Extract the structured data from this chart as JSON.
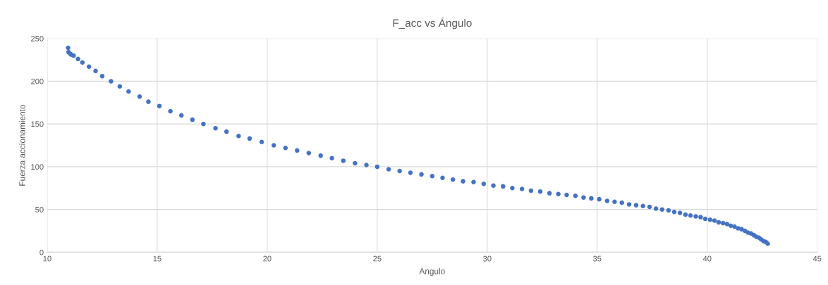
{
  "chart_data": {
    "type": "scatter",
    "title": "F_acc vs Ángulo",
    "xlabel": "Ángulo",
    "ylabel": "Fuerza accionamiento",
    "xlim": [
      10,
      45
    ],
    "xticks": [
      10,
      15,
      20,
      25,
      30,
      35,
      40,
      45
    ],
    "ylim": [
      0,
      250
    ],
    "yticks": [
      0,
      50,
      100,
      150,
      200,
      250
    ],
    "grid": true,
    "marker": "circle",
    "series": [
      {
        "color": "#4472c4",
        "x": [
          10.95,
          10.97,
          11.05,
          11.1,
          11.2,
          11.4,
          11.6,
          11.9,
          12.2,
          12.5,
          12.9,
          13.3,
          13.7,
          14.2,
          14.6,
          15.1,
          15.6,
          16.1,
          16.6,
          17.1,
          17.65,
          18.15,
          18.7,
          19.2,
          19.75,
          20.3,
          20.83,
          21.36,
          21.89,
          22.43,
          22.94,
          23.46,
          23.99,
          24.51,
          25.0,
          25.52,
          26.02,
          26.51,
          27.01,
          27.5,
          27.97,
          28.44,
          28.9,
          29.38,
          29.84,
          30.28,
          30.72,
          31.14,
          31.58,
          31.99,
          32.41,
          32.83,
          33.23,
          33.61,
          34.01,
          34.38,
          34.73,
          35.09,
          35.45,
          35.79,
          36.12,
          36.45,
          36.77,
          37.08,
          37.38,
          37.67,
          37.95,
          38.24,
          38.5,
          38.76,
          39.01,
          39.24,
          39.48,
          39.7,
          39.91,
          40.13,
          40.33,
          40.52,
          40.72,
          40.9,
          41.07,
          41.24,
          41.4,
          41.56,
          41.71,
          41.85,
          41.99,
          42.12,
          42.23,
          42.35,
          42.45,
          42.56,
          42.66,
          42.75
        ],
        "values": [
          239,
          234,
          232,
          231,
          230,
          226,
          222,
          217,
          212,
          206,
          200,
          194,
          188,
          182,
          176,
          171,
          165,
          160,
          155,
          150,
          145,
          141,
          136,
          133,
          129,
          125,
          122,
          119,
          116,
          113,
          110,
          107,
          104,
          102,
          100,
          97,
          95,
          93,
          91,
          89,
          87,
          85,
          83,
          82,
          80,
          78,
          77,
          75,
          74,
          72,
          71,
          69,
          68,
          67,
          66,
          64,
          63,
          62,
          60,
          59,
          58,
          56,
          55,
          54,
          53,
          51,
          50,
          49,
          47,
          46,
          44,
          43,
          42,
          41,
          39,
          38,
          37,
          35,
          34,
          33,
          31,
          30,
          28,
          27,
          25,
          23,
          22,
          20,
          18,
          17,
          15,
          13,
          12,
          10
        ]
      }
    ]
  }
}
